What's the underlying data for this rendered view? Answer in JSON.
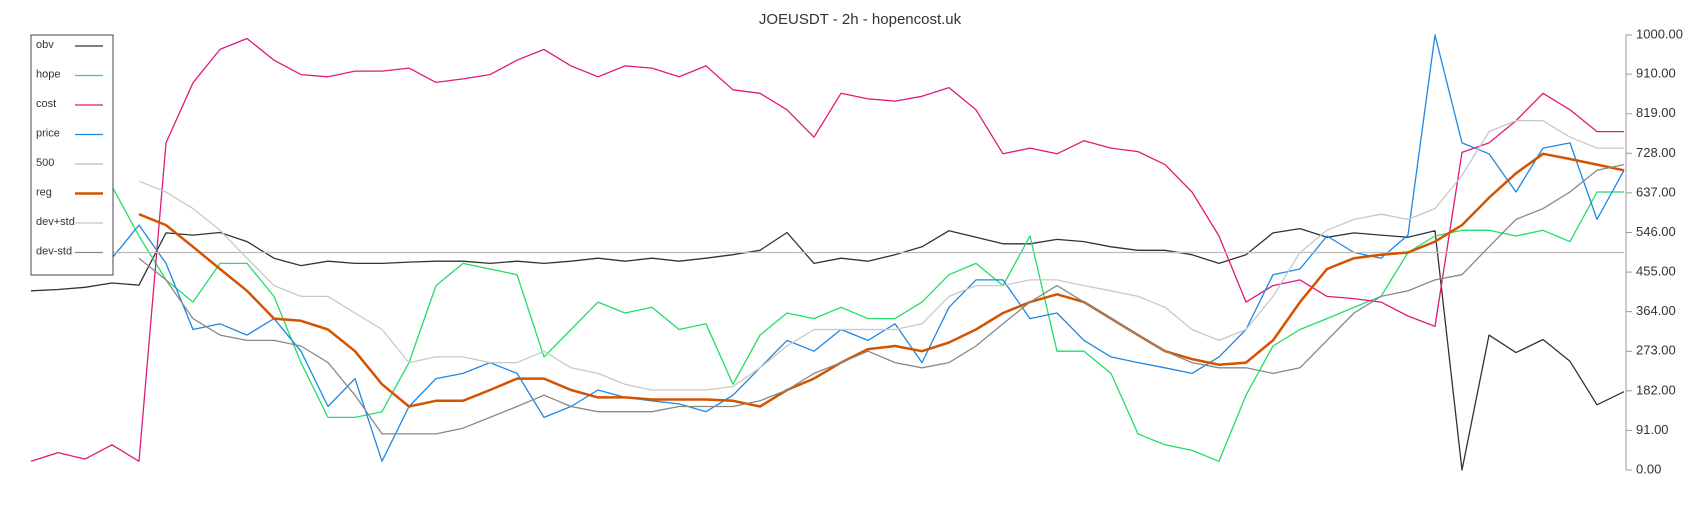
{
  "chart_data": {
    "type": "line",
    "title": "JOEUSDT - 2h - hopencost.uk",
    "ylim": [
      0,
      1000
    ],
    "yticks": [
      {
        "value": 0,
        "label": "0.00"
      },
      {
        "value": 91,
        "label": "91.00"
      },
      {
        "value": 182,
        "label": "182.00"
      },
      {
        "value": 273,
        "label": "273.00"
      },
      {
        "value": 364,
        "label": "364.00"
      },
      {
        "value": 455,
        "label": "455.00"
      },
      {
        "value": 546,
        "label": "546.00"
      },
      {
        "value": 637,
        "label": "637.00"
      },
      {
        "value": 728,
        "label": "728.00"
      },
      {
        "value": 819,
        "label": "819.00"
      },
      {
        "value": 910,
        "label": "910.00"
      },
      {
        "value": 1000,
        "label": "1000.00"
      }
    ],
    "grid": false,
    "legend": "top-left",
    "series": [
      {
        "name": "obv",
        "color": "#333333",
        "values": [
          412,
          415,
          420,
          430,
          425,
          545,
          540,
          546,
          525,
          487,
          470,
          480,
          475,
          475,
          478,
          480,
          480,
          475,
          480,
          475,
          480,
          487,
          480,
          487,
          480,
          487,
          495,
          505,
          546,
          475,
          487,
          480,
          495,
          513,
          550,
          535,
          520,
          520,
          530,
          525,
          513,
          505,
          505,
          495,
          475,
          495,
          545,
          555,
          535,
          545,
          540,
          535,
          550,
          0,
          310,
          270,
          300,
          250,
          150,
          180
        ]
      },
      {
        "name": "hope",
        "color": "#22dd66",
        "values": [
          null,
          null,
          null,
          652,
          538,
          437,
          386,
          475,
          475,
          399,
          247,
          121,
          121,
          134,
          247,
          424,
          475,
          462,
          449,
          260,
          323,
          386,
          361,
          374,
          323,
          336,
          197,
          310,
          361,
          348,
          374,
          348,
          348,
          386,
          449,
          475,
          424,
          538,
          273,
          273,
          222,
          83,
          58,
          45,
          20,
          172,
          285,
          323,
          348,
          374,
          399,
          500,
          538,
          551,
          551,
          538,
          551,
          525,
          639,
          639
        ]
      },
      {
        "name": "cost",
        "color": "#e0197a",
        "values": [
          20,
          40,
          25,
          58,
          20,
          752,
          890,
          967,
          992,
          942,
          909,
          904,
          917,
          917,
          924,
          891,
          899,
          909,
          942,
          967,
          929,
          904,
          929,
          924,
          904,
          929,
          874,
          866,
          828,
          765,
          866,
          853,
          848,
          859,
          879,
          828,
          727,
          740,
          727,
          757,
          740,
          732,
          702,
          639,
          538,
          386,
          424,
          437,
          399,
          394,
          386,
          354,
          330,
          730,
          752,
          803,
          866,
          828,
          778,
          778
        ]
      },
      {
        "name": "price",
        "color": "#1e88e5",
        "values": [
          null,
          null,
          null,
          487,
          563,
          475,
          323,
          336,
          310,
          348,
          273,
          146,
          210,
          20,
          146,
          210,
          222,
          247,
          222,
          121,
          146,
          184,
          167,
          159,
          152,
          134,
          172,
          235,
          298,
          273,
          323,
          298,
          336,
          247,
          374,
          437,
          437,
          348,
          361,
          298,
          260,
          247,
          235,
          222,
          260,
          323,
          449,
          462,
          538,
          500,
          487,
          540,
          1000,
          752,
          727,
          639,
          740,
          752,
          576,
          689
        ]
      },
      {
        "name": "500",
        "color": "#bbbbbb",
        "values": [
          500,
          500,
          500,
          500,
          500,
          500,
          500,
          500,
          500,
          500,
          500,
          500,
          500,
          500,
          500,
          500,
          500,
          500,
          500,
          500,
          500,
          500,
          500,
          500,
          500,
          500,
          500,
          500,
          500,
          500,
          500,
          500,
          500,
          500,
          500,
          500,
          500,
          500,
          500,
          500,
          500,
          500,
          500,
          500,
          500,
          500,
          500,
          500,
          500,
          500,
          500,
          500,
          500,
          500,
          500,
          500,
          500,
          500,
          500,
          500
        ]
      },
      {
        "name": "reg",
        "color": "#d35400",
        "values": [
          null,
          null,
          null,
          null,
          588,
          563,
          513,
          462,
          412,
          348,
          343,
          323,
          273,
          197,
          146,
          159,
          159,
          184,
          210,
          210,
          184,
          167,
          167,
          162,
          162,
          162,
          159,
          146,
          184,
          210,
          247,
          278,
          285,
          273,
          293,
          323,
          361,
          386,
          404,
          386,
          348,
          310,
          273,
          255,
          242,
          247,
          298,
          386,
          462,
          487,
          495,
          500,
          525,
          563,
          626,
          682,
          727,
          715,
          702,
          689
        ]
      },
      {
        "name": "dev+std",
        "color": "#c8c8c8",
        "values": [
          null,
          null,
          null,
          null,
          664,
          639,
          601,
          551,
          487,
          424,
          399,
          399,
          361,
          323,
          247,
          260,
          260,
          247,
          247,
          273,
          235,
          222,
          197,
          184,
          184,
          184,
          192,
          235,
          285,
          323,
          323,
          323,
          323,
          336,
          399,
          424,
          424,
          437,
          437,
          424,
          412,
          399,
          374,
          323,
          298,
          323,
          399,
          500,
          551,
          576,
          588,
          576,
          601,
          677,
          778,
          803,
          803,
          765,
          740,
          740
        ]
      },
      {
        "name": "dev-std",
        "color": "#888888",
        "values": [
          null,
          null,
          null,
          null,
          487,
          437,
          348,
          310,
          298,
          298,
          285,
          247,
          172,
          83,
          83,
          83,
          96,
          121,
          146,
          172,
          146,
          134,
          134,
          134,
          146,
          146,
          146,
          159,
          184,
          222,
          247,
          273,
          247,
          235,
          247,
          285,
          336,
          386,
          424,
          386,
          348,
          310,
          273,
          247,
          235,
          235,
          222,
          235,
          298,
          361,
          399,
          412,
          437,
          449,
          513,
          576,
          601,
          639,
          689,
          702
        ]
      }
    ]
  }
}
